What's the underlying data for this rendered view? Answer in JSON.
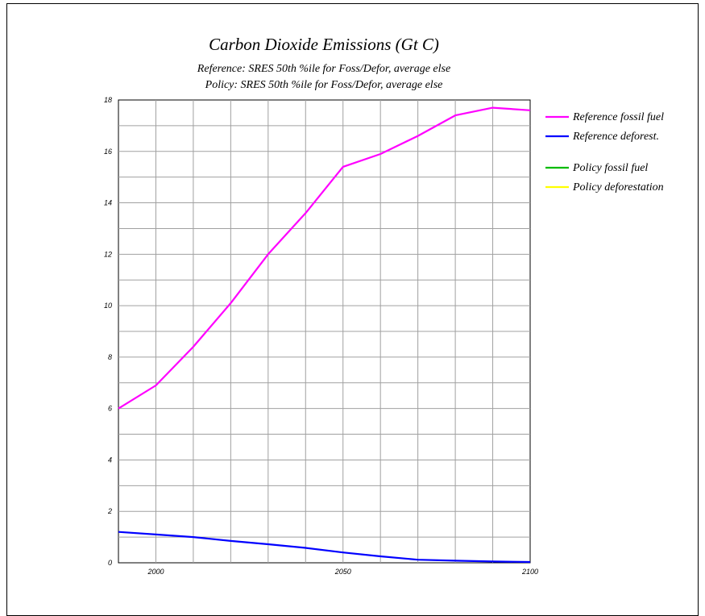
{
  "chart_data": {
    "type": "line",
    "title": "Carbon Dioxide Emissions (Gt C)",
    "subtitles": [
      "Reference: SRES 50th %ile for Foss/Defor, average else",
      "Policy: SRES 50th %ile for Foss/Defor, average else"
    ],
    "xlabel": "",
    "ylabel": "",
    "xlim": [
      1990,
      2100
    ],
    "ylim": [
      0,
      18
    ],
    "x_ticks": [
      2000,
      2050,
      2100
    ],
    "y_ticks": [
      0,
      2,
      4,
      6,
      8,
      10,
      12,
      14,
      16,
      18
    ],
    "grid": true,
    "legend_position": "right",
    "series": [
      {
        "name": "Reference fossil fuel",
        "color": "#ff00ff",
        "x": [
          1990,
          2000,
          2010,
          2020,
          2030,
          2040,
          2050,
          2060,
          2070,
          2080,
          2090,
          2100
        ],
        "values": [
          6.0,
          6.9,
          8.4,
          10.1,
          12.0,
          13.6,
          15.4,
          15.9,
          16.6,
          17.4,
          17.7,
          17.6
        ]
      },
      {
        "name": "Reference deforest.",
        "color": "#0000ff",
        "x": [
          1990,
          2000,
          2010,
          2020,
          2030,
          2040,
          2050,
          2060,
          2070,
          2080,
          2090,
          2100
        ],
        "values": [
          1.2,
          1.1,
          1.0,
          0.85,
          0.72,
          0.58,
          0.4,
          0.25,
          0.12,
          0.08,
          0.05,
          0.03
        ]
      },
      {
        "name": "Policy fossil fuel",
        "color": "#00bb00",
        "x": [],
        "values": []
      },
      {
        "name": "Policy deforestation",
        "color": "#ffff00",
        "x": [],
        "values": []
      }
    ]
  }
}
